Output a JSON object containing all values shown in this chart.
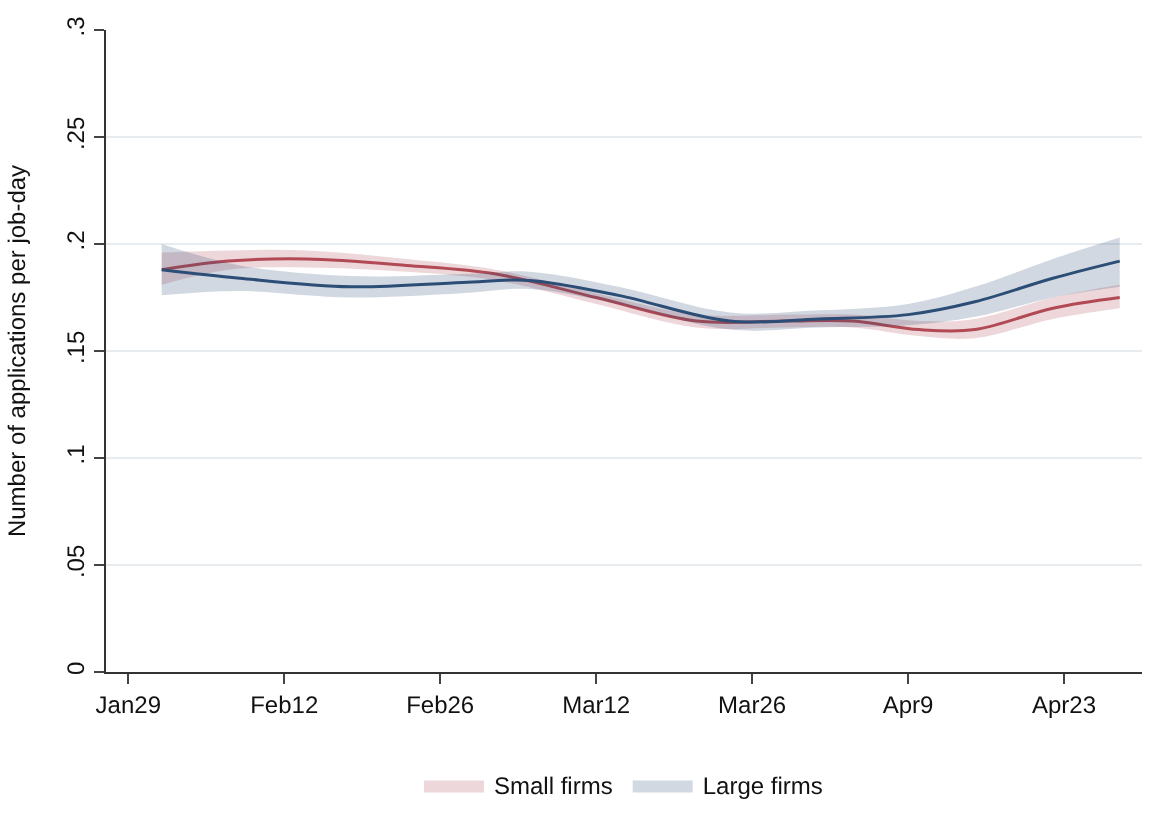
{
  "chart_data": {
    "type": "line",
    "ylabel": "Number of applications per job-day",
    "xlim": [
      "--01-27",
      "--04-30"
    ],
    "ylim": [
      0,
      0.3
    ],
    "xticks": [
      {
        "value": "--01-29",
        "label": "Jan29"
      },
      {
        "value": "--02-12",
        "label": "Feb12"
      },
      {
        "value": "--02-26",
        "label": "Feb26"
      },
      {
        "value": "--03-12",
        "label": "Mar12"
      },
      {
        "value": "--03-26",
        "label": "Mar26"
      },
      {
        "value": "--04-09",
        "label": "Apr9"
      },
      {
        "value": "--04-23",
        "label": "Apr23"
      }
    ],
    "yticks": [
      0,
      {
        "value": 0.05,
        "label": ".05"
      },
      {
        "value": 0.1,
        "label": ".1"
      },
      {
        "value": 0.15,
        "label": ".15"
      },
      {
        "value": 0.2,
        "label": ".2"
      },
      {
        "value": 0.25,
        "label": ".25"
      },
      {
        "value": 0.3,
        "label": ".3"
      }
    ],
    "grid": "y",
    "legend": "bottom",
    "series": [
      {
        "name": "Small firms",
        "color": "#b24a55",
        "x": [
          "--02-01",
          "--02-07",
          "--02-14",
          "--02-23",
          "--03-03",
          "--03-12",
          "--03-21",
          "--03-29",
          "--04-04",
          "--04-10",
          "--04-15",
          "--04-22",
          "--04-28"
        ],
        "values": [
          0.188,
          0.192,
          0.193,
          0.19,
          0.186,
          0.175,
          0.164,
          0.164,
          0.164,
          0.16,
          0.16,
          0.17,
          0.175
        ],
        "lower": [
          0.181,
          0.188,
          0.189,
          0.187,
          0.183,
          0.172,
          0.161,
          0.161,
          0.161,
          0.157,
          0.156,
          0.165,
          0.17
        ],
        "upper": [
          0.196,
          0.197,
          0.197,
          0.193,
          0.188,
          0.177,
          0.167,
          0.167,
          0.167,
          0.164,
          0.165,
          0.175,
          0.181
        ]
      },
      {
        "name": "Large firms",
        "color": "#2c4d75",
        "x": [
          "--02-01",
          "--02-08",
          "--02-18",
          "--02-28",
          "--03-06",
          "--03-14",
          "--03-24",
          "--04-01",
          "--04-09",
          "--04-15",
          "--04-22",
          "--04-28"
        ],
        "values": [
          0.188,
          0.184,
          0.18,
          0.182,
          0.183,
          0.176,
          0.164,
          0.165,
          0.167,
          0.173,
          0.184,
          0.192
        ],
        "lower": [
          0.176,
          0.178,
          0.175,
          0.177,
          0.179,
          0.172,
          0.16,
          0.161,
          0.162,
          0.166,
          0.175,
          0.18
        ],
        "upper": [
          0.2,
          0.19,
          0.185,
          0.186,
          0.187,
          0.18,
          0.168,
          0.169,
          0.172,
          0.18,
          0.193,
          0.203
        ]
      }
    ]
  }
}
